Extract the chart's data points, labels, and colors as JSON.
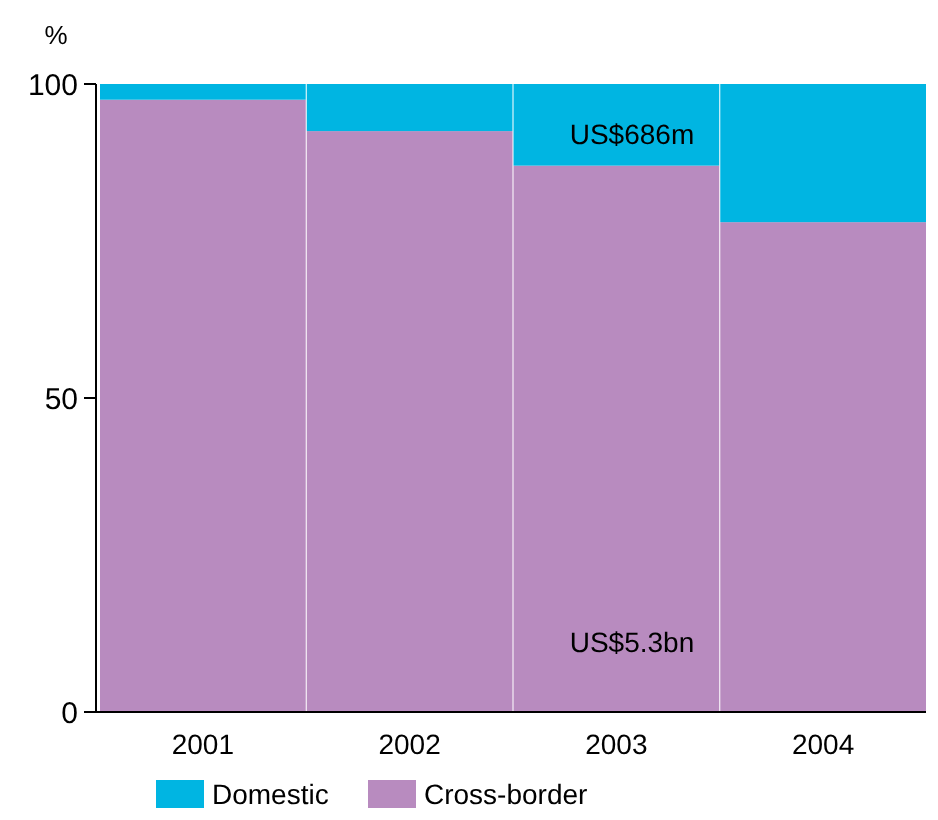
{
  "chart_data": {
    "type": "bar",
    "stacked": true,
    "ylabel": "%",
    "categories": [
      "2001",
      "2002",
      "2003",
      "2004"
    ],
    "series": [
      {
        "name": "Cross-border",
        "color": "#b88bbf",
        "values": [
          97.5,
          92.5,
          87,
          78
        ]
      },
      {
        "name": "Domestic",
        "color": "#00b5e2",
        "values": [
          2.5,
          7.5,
          13,
          22
        ]
      }
    ],
    "ylim": [
      0,
      100
    ],
    "yticks": [
      0,
      50,
      100
    ],
    "grid": false,
    "legend": "bottom",
    "annotations": [
      "US$686m",
      "US$5.3bn"
    ]
  }
}
